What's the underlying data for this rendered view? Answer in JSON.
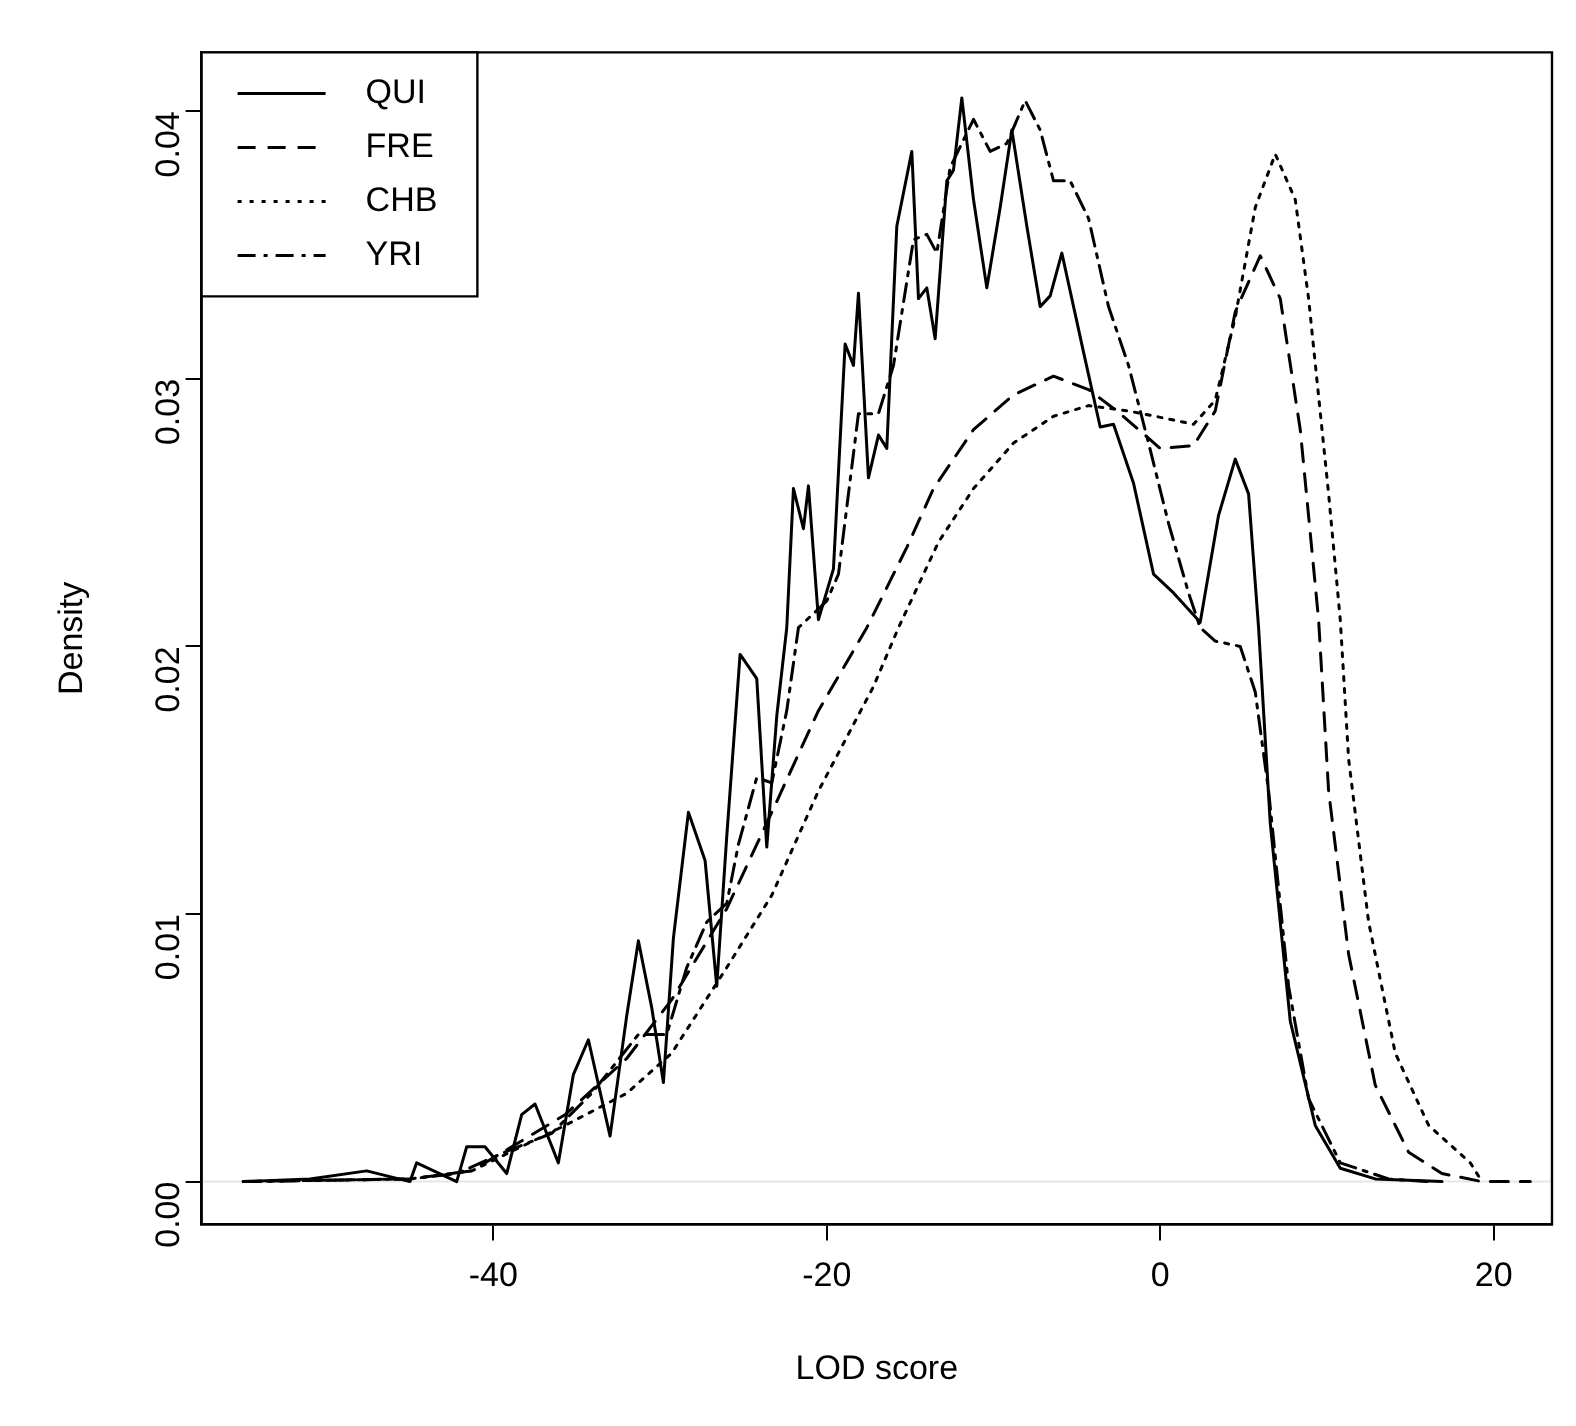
{
  "chart_data": {
    "type": "line",
    "xlabel": "LOD score",
    "ylabel": "Density",
    "xlim": [
      -57.5,
      23.5
    ],
    "ylim": [
      -0.0016,
      0.0422
    ],
    "xticks": [
      -40,
      -20,
      0,
      20
    ],
    "yticks": [
      {
        "value": 0,
        "label": "0.00"
      },
      {
        "value": 0.01,
        "label": "0.01"
      },
      {
        "value": 0.02,
        "label": "0.02"
      },
      {
        "value": 0.03,
        "label": "0.03"
      },
      {
        "value": 0.04,
        "label": "0.04"
      }
    ],
    "grid": false,
    "legend": "top left",
    "marker": "none",
    "ref_lines": [
      {
        "axis": "y",
        "value": 0,
        "color": "#e6e6e6"
      }
    ],
    "series": [
      {
        "name": "QUI",
        "color": "#000000",
        "line_style": "solid",
        "x": [
          -55,
          -51,
          -47.6,
          -45,
          -44.6,
          -42.2,
          -41.6,
          -40.5,
          -39.2,
          -38.3,
          -37.5,
          -36.1,
          -35.2,
          -34.3,
          -33,
          -32,
          -31.3,
          -30.5,
          -29.8,
          -29.2,
          -28.3,
          -27.3,
          -26.6,
          -26,
          -25.2,
          -24.2,
          -23.6,
          -23,
          -22.4,
          -22,
          -21.4,
          -21.1,
          -20.5,
          -19.6,
          -18.9,
          -18.4,
          -18.1,
          -17.5,
          -16.9,
          -16.4,
          -15.8,
          -14.9,
          -14.5,
          -14,
          -13.5,
          -12.8,
          -12.4,
          -11.9,
          -11.2,
          -10.4,
          -9.6,
          -8.9,
          -8,
          -7.2,
          -6.6,
          -5.9,
          -4.6,
          -3.6,
          -2.8,
          -1.6,
          -0.4,
          0.8,
          2.4,
          3.5,
          4.5,
          5.3,
          5.9,
          6.6,
          7.8,
          9.3,
          10.8,
          12.9,
          16.9
        ],
        "values": [
          0,
          0.0001,
          0.0004,
          0,
          0.0007,
          0,
          0.0013,
          0.0013,
          0.0003,
          0.0025,
          0.0029,
          0.0007,
          0.004,
          0.0053,
          0.0017,
          0.0062,
          0.009,
          0.0065,
          0.0037,
          0.0091,
          0.0138,
          0.012,
          0.0073,
          0.0129,
          0.0197,
          0.0188,
          0.0125,
          0.0174,
          0.0207,
          0.0259,
          0.0244,
          0.026,
          0.021,
          0.0229,
          0.0313,
          0.0305,
          0.0332,
          0.0263,
          0.0279,
          0.0274,
          0.0357,
          0.0385,
          0.033,
          0.0334,
          0.0315,
          0.0374,
          0.0378,
          0.0405,
          0.0367,
          0.0334,
          0.0364,
          0.0393,
          0.0357,
          0.0327,
          0.0331,
          0.0347,
          0.031,
          0.0282,
          0.0283,
          0.0261,
          0.0227,
          0.022,
          0.0209,
          0.0249,
          0.027,
          0.0257,
          0.0207,
          0.0134,
          0.006,
          0.0021,
          0.0005,
          0.0001,
          0
        ]
      },
      {
        "name": "FRE",
        "color": "#000000",
        "line_style": "dashed",
        "x": [
          -55,
          -45,
          -41.3,
          -35.7,
          -32,
          -29.3,
          -26,
          -23.3,
          -20.5,
          -17.6,
          -15.2,
          -13.6,
          -11.2,
          -8.8,
          -6.4,
          -4.3,
          -2.4,
          0,
          2,
          3.3,
          4.5,
          6,
          7.2,
          8.4,
          9.5,
          10.1,
          11.3,
          12.9,
          14.9,
          16.9,
          19.3,
          22.2
        ],
        "values": [
          0,
          0.0001,
          0.0004,
          0.0025,
          0.0046,
          0.0068,
          0.0102,
          0.0138,
          0.0176,
          0.0207,
          0.0237,
          0.0259,
          0.0281,
          0.0294,
          0.0301,
          0.0296,
          0.0287,
          0.0274,
          0.0275,
          0.0288,
          0.0325,
          0.0346,
          0.033,
          0.0281,
          0.021,
          0.0146,
          0.0085,
          0.0036,
          0.0011,
          0.0003,
          0,
          0
        ]
      },
      {
        "name": "CHB",
        "color": "#000000",
        "line_style": "dotted",
        "x": [
          -55,
          -45,
          -41.3,
          -35.7,
          -32,
          -29.3,
          -26,
          -23.3,
          -20.5,
          -17.2,
          -15.7,
          -13.3,
          -11.2,
          -8.8,
          -6.4,
          -4.3,
          -1.9,
          0.5,
          2,
          3.3,
          4.5,
          5.7,
          6.9,
          8.1,
          8.9,
          10.1,
          10.8,
          11.3,
          12.5,
          14.1,
          16.1,
          18.6,
          19.3
        ],
        "values": [
          0,
          0.0001,
          0.0004,
          0.0021,
          0.0033,
          0.0048,
          0.008,
          0.0107,
          0.0146,
          0.0185,
          0.0207,
          0.0239,
          0.0259,
          0.0276,
          0.0286,
          0.029,
          0.0288,
          0.0285,
          0.0283,
          0.0292,
          0.0323,
          0.0364,
          0.0384,
          0.0367,
          0.033,
          0.0257,
          0.021,
          0.0158,
          0.0097,
          0.0048,
          0.0021,
          0.0007,
          0
        ]
      },
      {
        "name": "YRI",
        "color": "#000000",
        "line_style": "dashdot",
        "x": [
          -55,
          -45,
          -42.2,
          -39.3,
          -36.5,
          -34.1,
          -31.3,
          -29.6,
          -28.4,
          -27.2,
          -26,
          -25.3,
          -24.2,
          -23.3,
          -22.4,
          -21.7,
          -20,
          -19.3,
          -18.1,
          -16.9,
          -16,
          -14.8,
          -14,
          -13.4,
          -12.6,
          -11.2,
          -10.2,
          -9.2,
          -8.1,
          -7.2,
          -6.4,
          -5.4,
          -4.3,
          -3.1,
          -1.9,
          -0.7,
          0.5,
          1.7,
          2.4,
          3.3,
          4.8,
          5.7,
          6.5,
          7.7,
          8.9,
          10.8,
          13.7,
          16
        ],
        "values": [
          0,
          0.0001,
          0.0003,
          0.0011,
          0.0018,
          0.0033,
          0.0055,
          0.0055,
          0.008,
          0.0097,
          0.0104,
          0.0126,
          0.0151,
          0.0149,
          0.0176,
          0.0207,
          0.0217,
          0.0227,
          0.0287,
          0.0287,
          0.0305,
          0.0352,
          0.0354,
          0.0347,
          0.0379,
          0.0397,
          0.0385,
          0.0388,
          0.0404,
          0.0393,
          0.0374,
          0.0374,
          0.036,
          0.0327,
          0.0305,
          0.0276,
          0.0246,
          0.022,
          0.0207,
          0.0202,
          0.02,
          0.0183,
          0.0146,
          0.0073,
          0.0031,
          0.0007,
          0.0001,
          0
        ]
      }
    ]
  }
}
